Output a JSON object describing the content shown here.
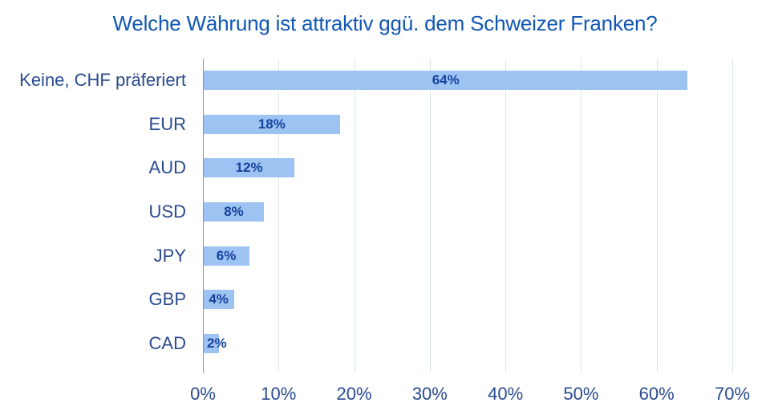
{
  "chart_data": {
    "type": "bar",
    "orientation": "horizontal",
    "title": "Welche Währung ist attraktiv ggü. dem Schweizer Franken?",
    "categories": [
      "Keine, CHF präferiert",
      "EUR",
      "AUD",
      "USD",
      "JPY",
      "GBP",
      "CAD"
    ],
    "values": [
      64,
      18,
      12,
      8,
      6,
      4,
      2
    ],
    "value_labels": [
      "64%",
      "18%",
      "12%",
      "8%",
      "6%",
      "4%",
      "2%"
    ],
    "x_ticks": [
      "0%",
      "10%",
      "20%",
      "30%",
      "40%",
      "50%",
      "60%",
      "70%"
    ],
    "xlim": [
      0,
      70
    ],
    "xlabel": "",
    "ylabel": "",
    "grid": "vertical-gridlines",
    "legend": "none",
    "value_label_position": "center-of-bar",
    "colors": {
      "bar_fill": "#9DC3F3",
      "title_text": "#1157B5",
      "axis_label_text": "#2A4B8F",
      "value_label_text": "#16419C",
      "gridline": "#D9E4E6",
      "axis_line": "#8694A8",
      "background": "#FFFFFF"
    }
  }
}
